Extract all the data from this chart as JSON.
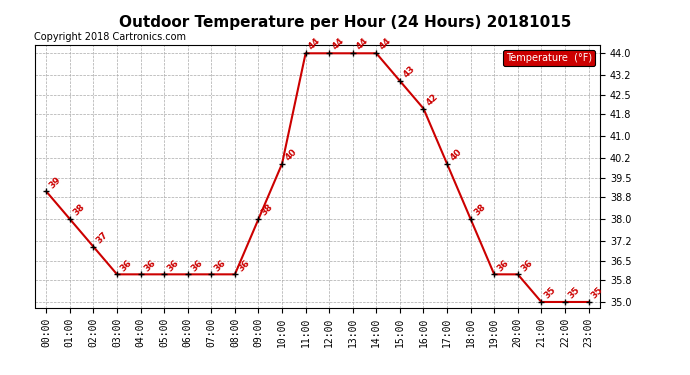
{
  "title": "Outdoor Temperature per Hour (24 Hours) 20181015",
  "copyright": "Copyright 2018 Cartronics.com",
  "legend_label": "Temperature  (°F)",
  "hours": [
    "00:00",
    "01:00",
    "02:00",
    "03:00",
    "04:00",
    "05:00",
    "06:00",
    "07:00",
    "08:00",
    "09:00",
    "10:00",
    "11:00",
    "12:00",
    "13:00",
    "14:00",
    "15:00",
    "16:00",
    "17:00",
    "18:00",
    "19:00",
    "20:00",
    "21:00",
    "22:00",
    "23:00"
  ],
  "temps": [
    39,
    38,
    37,
    36,
    36,
    36,
    36,
    36,
    36,
    38,
    40,
    44,
    44,
    44,
    44,
    43,
    42,
    40,
    38,
    36,
    36,
    35,
    35,
    35
  ],
  "line_color": "#cc0000",
  "marker_color": "#000000",
  "label_color": "#cc0000",
  "grid_color": "#aaaaaa",
  "background_color": "#ffffff",
  "title_fontsize": 11,
  "copyright_fontsize": 7,
  "label_fontsize": 6.5,
  "tick_fontsize": 7,
  "ylim_min": 34.8,
  "ylim_max": 44.3,
  "yticks": [
    35.0,
    35.8,
    36.5,
    37.2,
    38.0,
    38.8,
    39.5,
    40.2,
    41.0,
    41.8,
    42.5,
    43.2,
    44.0
  ]
}
